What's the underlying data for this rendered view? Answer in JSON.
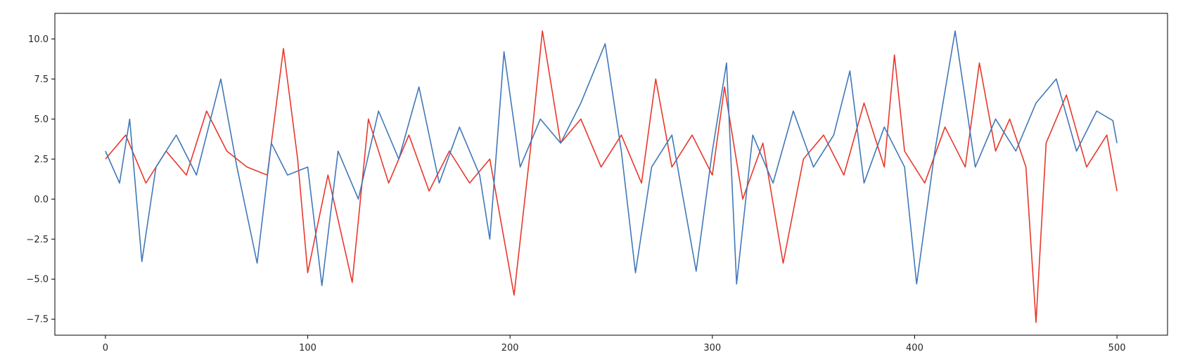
{
  "chart_data": {
    "type": "line",
    "title": "",
    "xlabel": "",
    "ylabel": "",
    "xlim": [
      -25,
      525
    ],
    "ylim": [
      -8.5,
      11.6
    ],
    "x_ticks": [
      0,
      100,
      200,
      300,
      400,
      500
    ],
    "x_tick_labels": [
      "0",
      "100",
      "200",
      "300",
      "400",
      "500"
    ],
    "y_ticks": [
      -7.5,
      -5.0,
      -2.5,
      0.0,
      2.5,
      5.0,
      7.5,
      10.0
    ],
    "y_tick_labels": [
      "−7.5",
      "−5.0",
      "−2.5",
      "0.0",
      "2.5",
      "5.0",
      "7.5",
      "10.0"
    ],
    "grid": false,
    "legend": "none",
    "series": [
      {
        "color": "#e8382b",
        "x": [
          0,
          10,
          20,
          30,
          40,
          50,
          60,
          70,
          80,
          88,
          95,
          100,
          110,
          122,
          130,
          140,
          150,
          160,
          170,
          180,
          190,
          202,
          210,
          216,
          225,
          235,
          245,
          255,
          265,
          272,
          280,
          290,
          300,
          306,
          315,
          325,
          335,
          345,
          355,
          365,
          375,
          385,
          390,
          395,
          405,
          415,
          425,
          432,
          440,
          447,
          455,
          460,
          465,
          475,
          485,
          495,
          500
        ],
        "y": [
          2.5,
          4.0,
          1.0,
          3.0,
          1.5,
          5.5,
          3.0,
          2.0,
          1.5,
          9.4,
          2.5,
          -4.6,
          1.5,
          -5.2,
          5.0,
          1.0,
          4.0,
          0.5,
          3.0,
          1.0,
          2.5,
          -6.0,
          3.0,
          10.5,
          3.5,
          5.0,
          2.0,
          4.0,
          1.0,
          7.5,
          2.0,
          4.0,
          1.5,
          7.0,
          0.0,
          3.5,
          -4.0,
          2.5,
          4.0,
          1.5,
          6.0,
          2.0,
          9.0,
          3.0,
          1.0,
          4.5,
          2.0,
          8.5,
          3.0,
          5.0,
          2.0,
          -7.7,
          3.5,
          6.5,
          2.0,
          4.0,
          0.5
        ]
      },
      {
        "color": "#4178b8",
        "x": [
          0,
          7,
          12,
          18,
          25,
          35,
          45,
          57,
          65,
          75,
          82,
          90,
          100,
          107,
          115,
          125,
          135,
          145,
          155,
          165,
          175,
          185,
          190,
          197,
          205,
          215,
          225,
          235,
          247,
          255,
          262,
          270,
          280,
          292,
          300,
          307,
          312,
          320,
          330,
          340,
          350,
          360,
          368,
          375,
          385,
          395,
          401,
          410,
          420,
          430,
          440,
          450,
          460,
          470,
          480,
          490,
          498,
          500
        ],
        "y": [
          3.0,
          1.0,
          5.0,
          -3.9,
          2.0,
          4.0,
          1.5,
          7.5,
          2.0,
          -4.0,
          3.5,
          1.5,
          2.0,
          -5.4,
          3.0,
          0.0,
          5.5,
          2.5,
          7.0,
          1.0,
          4.5,
          1.5,
          -2.5,
          9.2,
          2.0,
          5.0,
          3.5,
          6.0,
          9.7,
          3.0,
          -4.6,
          2.0,
          4.0,
          -4.5,
          3.0,
          8.5,
          -5.3,
          4.0,
          1.0,
          5.5,
          2.0,
          4.0,
          8.0,
          1.0,
          4.5,
          2.0,
          -5.3,
          3.0,
          10.5,
          2.0,
          5.0,
          3.0,
          6.0,
          7.5,
          3.0,
          5.5,
          4.9,
          3.5
        ]
      }
    ]
  }
}
